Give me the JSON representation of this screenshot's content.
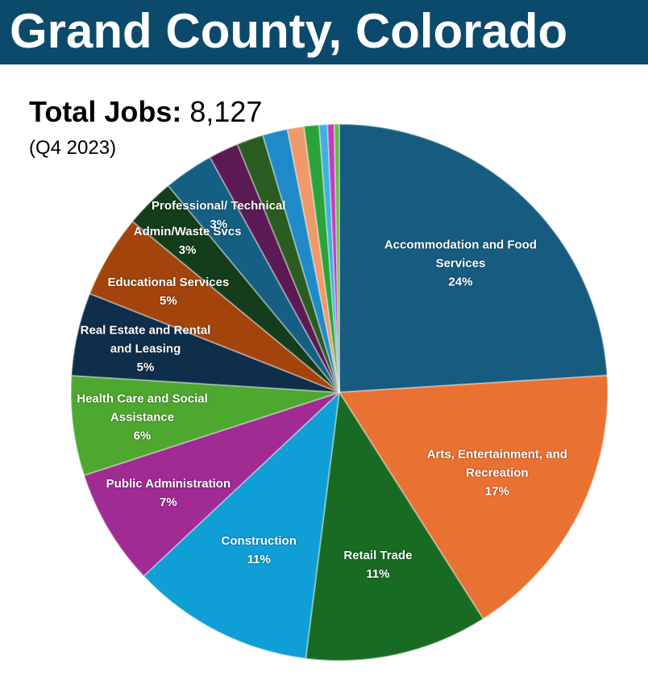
{
  "chart_data": {
    "type": "pie",
    "title": "Grand County, Colorado",
    "total_label": "Total Jobs:",
    "total_value": "8,127",
    "subtitle": "(Q4 2023)",
    "categories": [
      "Accommodation and Food Services",
      "Arts, Entertainment, and Recreation",
      "Retail Trade",
      "Construction",
      "Public Administration",
      "Health Care and Social Assistance",
      "Real Estate and Rental and Leasing",
      "Educational Services",
      "Admin/Waste Svcs",
      "Professional/ Technical",
      null,
      null,
      null,
      null,
      null,
      null,
      null,
      null
    ],
    "values": [
      24,
      17,
      11,
      11,
      7,
      6,
      5,
      5,
      3,
      3,
      1.8,
      1.6,
      1.5,
      1,
      0.9,
      0.5,
      0.4,
      0.3
    ],
    "value_labels": [
      "24%",
      "17%",
      "11%",
      "11%",
      "7%",
      "6%",
      "5%",
      "5%",
      "3%",
      "3%",
      null,
      null,
      null,
      null,
      null,
      null,
      null,
      null
    ],
    "colors": [
      "#175c80",
      "#e97132",
      "#196b24",
      "#0f9ed5",
      "#a02b93",
      "#4ea72e",
      "#0e2e4a",
      "#a4440d",
      "#143d1c",
      "#155f82",
      "#5b1a54",
      "#2a5c22",
      "#1e8bc8",
      "#f0996a",
      "#2ca23a",
      "#3fb0e0",
      "#c03cbf",
      "#5cc040"
    ]
  }
}
